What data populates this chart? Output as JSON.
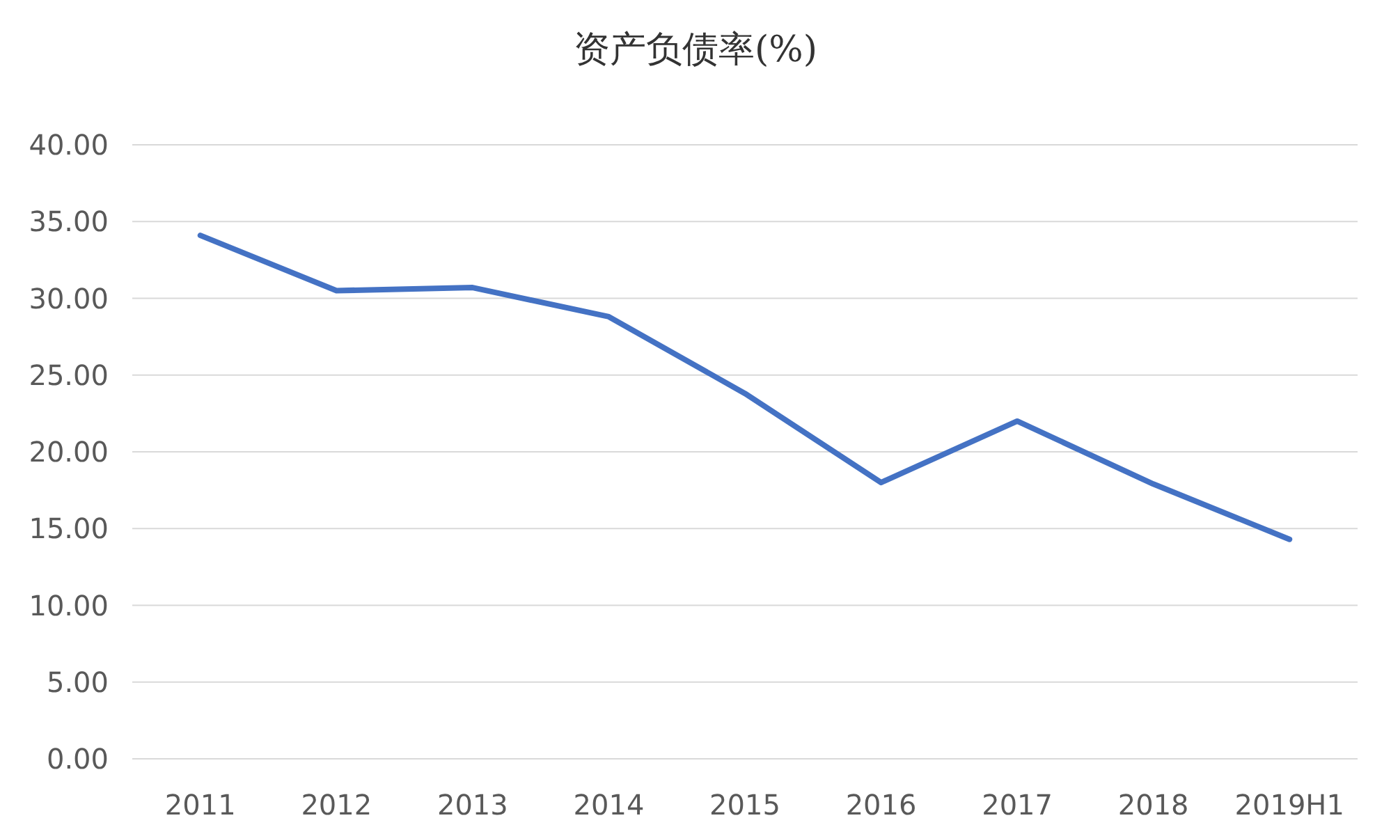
{
  "chart_data": {
    "type": "line",
    "title": "资产负债率(%)",
    "categories": [
      "2011",
      "2012",
      "2013",
      "2014",
      "2015",
      "2016",
      "2017",
      "2018",
      "2019H1"
    ],
    "series": [
      {
        "color": "#4472c4",
        "values": [
          34.1,
          30.5,
          30.7,
          28.8,
          23.8,
          18.0,
          22.0,
          17.9,
          14.3
        ]
      }
    ],
    "ylim": [
      0,
      40
    ],
    "yticks": [
      {
        "value": 0,
        "label": "0.00"
      },
      {
        "value": 5,
        "label": "5.00"
      },
      {
        "value": 10,
        "label": "10.00"
      },
      {
        "value": 15,
        "label": "15.00"
      },
      {
        "value": 20,
        "label": "20.00"
      },
      {
        "value": 25,
        "label": "25.00"
      },
      {
        "value": 30,
        "label": "30.00"
      },
      {
        "value": 35,
        "label": "35.00"
      },
      {
        "value": 40,
        "label": "40.00"
      }
    ],
    "grid": "y",
    "marker": "none",
    "line_style": "solid"
  }
}
